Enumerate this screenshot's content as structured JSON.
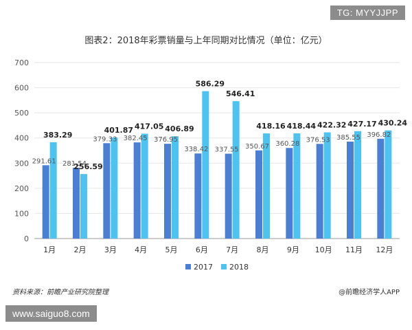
{
  "tg_badge": "TG: MYYJJPP",
  "source": "资料来源：前瞻产业研究院整理",
  "brand": "@前瞻经济学人APP",
  "url_badge": "www.saiguo8.com",
  "chart_data": {
    "type": "bar",
    "title": "图表2：2018年彩票销量与上年同期对比情况（单位：亿元）",
    "categories": [
      "1月",
      "2月",
      "3月",
      "4月",
      "5月",
      "6月",
      "7月",
      "8月",
      "9月",
      "10月",
      "11月",
      "12月"
    ],
    "series": [
      {
        "name": "2017",
        "color": "#4a7fd4",
        "values": [
          291.61,
          281.54,
          379.33,
          382.45,
          376.95,
          338.42,
          337.55,
          350.67,
          360.28,
          376.53,
          385.55,
          396.82
        ]
      },
      {
        "name": "2018",
        "color": "#4cc3f0",
        "values": [
          383.29,
          256.59,
          401.87,
          417.05,
          406.89,
          586.29,
          546.41,
          418.16,
          418.44,
          422.32,
          427.17,
          430.24
        ]
      }
    ],
    "ylim": [
      0,
      700
    ],
    "yticks": [
      0,
      100,
      200,
      300,
      400,
      500,
      600,
      700
    ],
    "xlabel": "",
    "ylabel": "",
    "grid": true,
    "legend": "bottom"
  }
}
